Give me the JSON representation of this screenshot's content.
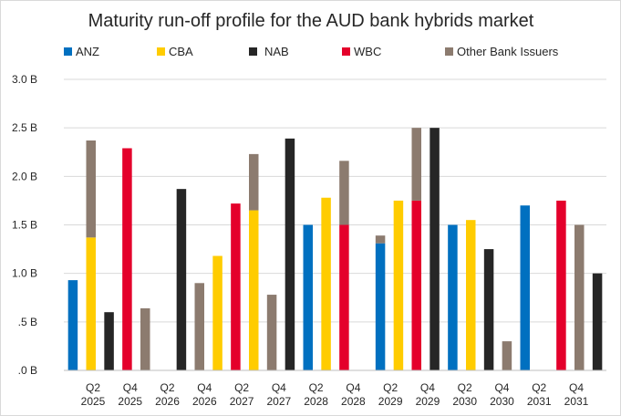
{
  "chart_data": {
    "type": "bar",
    "title": "Maturity run-off profile for the AUD bank hybrids market",
    "xlabel": "",
    "ylabel": "",
    "ylim": [
      0,
      3.0
    ],
    "yticks": [
      {
        "value": 0,
        "label": ".0 B"
      },
      {
        "value": 0.5,
        "label": ".5 B"
      },
      {
        "value": 1.0,
        "label": "1.0 B"
      },
      {
        "value": 1.5,
        "label": "1.5 B"
      },
      {
        "value": 2.0,
        "label": "2.0 B"
      },
      {
        "value": 2.5,
        "label": "2.5 B"
      },
      {
        "value": 3.0,
        "label": "3.0 B"
      }
    ],
    "grid": true,
    "legend_position": "top",
    "series": [
      {
        "name": "ANZ",
        "color": "#0070C0"
      },
      {
        "name": "CBA",
        "color": "#FFCC00"
      },
      {
        "name": "NAB",
        "color": "#262626"
      },
      {
        "name": "WBC",
        "color": "#E4002B"
      },
      {
        "name": "Other Bank Issuers",
        "color": "#8C7B6F"
      }
    ],
    "categories": [
      {
        "quarter": "Q2",
        "year": "2025"
      },
      {
        "quarter": "Q4",
        "year": "2025"
      },
      {
        "quarter": "Q2",
        "year": "2026"
      },
      {
        "quarter": "Q4",
        "year": "2026"
      },
      {
        "quarter": "Q2",
        "year": "2027"
      },
      {
        "quarter": "Q4",
        "year": "2027"
      },
      {
        "quarter": "Q2",
        "year": "2028"
      },
      {
        "quarter": "Q4",
        "year": "2028"
      },
      {
        "quarter": "Q2",
        "year": "2029"
      },
      {
        "quarter": "Q4",
        "year": "2029"
      },
      {
        "quarter": "Q2",
        "year": "2030"
      },
      {
        "quarter": "Q4",
        "year": "2030"
      },
      {
        "quarter": "Q2",
        "year": "2031"
      },
      {
        "quarter": "Q4",
        "year": "2031"
      }
    ],
    "bars": [
      {
        "series": "ANZ",
        "other": 0,
        "value": 0.93
      },
      {
        "series": "CBA",
        "other": 1.0,
        "value": 1.37
      },
      {
        "series": "NAB",
        "other": 0,
        "value": 0.6
      },
      {
        "series": "WBC",
        "other": 0,
        "value": 2.29
      },
      {
        "series": "Other Bank Issuers",
        "other": 0,
        "value": 0.64
      },
      {
        "series": "",
        "other": 0,
        "value": 0
      },
      {
        "series": "NAB",
        "other": 0,
        "value": 1.87
      },
      {
        "series": "Other Bank Issuers",
        "other": 0,
        "value": 0.9
      },
      {
        "series": "CBA",
        "other": 0,
        "value": 1.18
      },
      {
        "series": "WBC",
        "other": 0,
        "value": 1.72
      },
      {
        "series": "CBA",
        "other": 0.58,
        "value": 1.65
      },
      {
        "series": "Other Bank Issuers",
        "other": 0,
        "value": 0.78
      },
      {
        "series": "NAB",
        "other": 0,
        "value": 2.39
      },
      {
        "series": "ANZ",
        "other": 0,
        "value": 1.5
      },
      {
        "series": "CBA",
        "other": 0,
        "value": 1.78
      },
      {
        "series": "WBC",
        "other": 0.66,
        "value": 1.5
      },
      {
        "series": "",
        "other": 0,
        "value": 0
      },
      {
        "series": "ANZ",
        "other": 0.08,
        "value": 1.31
      },
      {
        "series": "CBA",
        "other": 0,
        "value": 1.75
      },
      {
        "series": "WBC",
        "other": 0.75,
        "value": 1.75
      },
      {
        "series": "NAB",
        "other": 0,
        "value": 2.5
      },
      {
        "series": "ANZ",
        "other": 0,
        "value": 1.5
      },
      {
        "series": "CBA",
        "other": 0,
        "value": 1.55
      },
      {
        "series": "NAB",
        "other": 0,
        "value": 1.25
      },
      {
        "series": "Other Bank Issuers",
        "other": 0,
        "value": 0.3
      },
      {
        "series": "ANZ",
        "other": 0,
        "value": 1.7
      },
      {
        "series": "",
        "other": 0,
        "value": 0
      },
      {
        "series": "WBC",
        "other": 0,
        "value": 1.75
      },
      {
        "series": "Other Bank Issuers",
        "other": 0,
        "value": 1.5
      },
      {
        "series": "NAB",
        "other": 0,
        "value": 1.0
      }
    ]
  }
}
